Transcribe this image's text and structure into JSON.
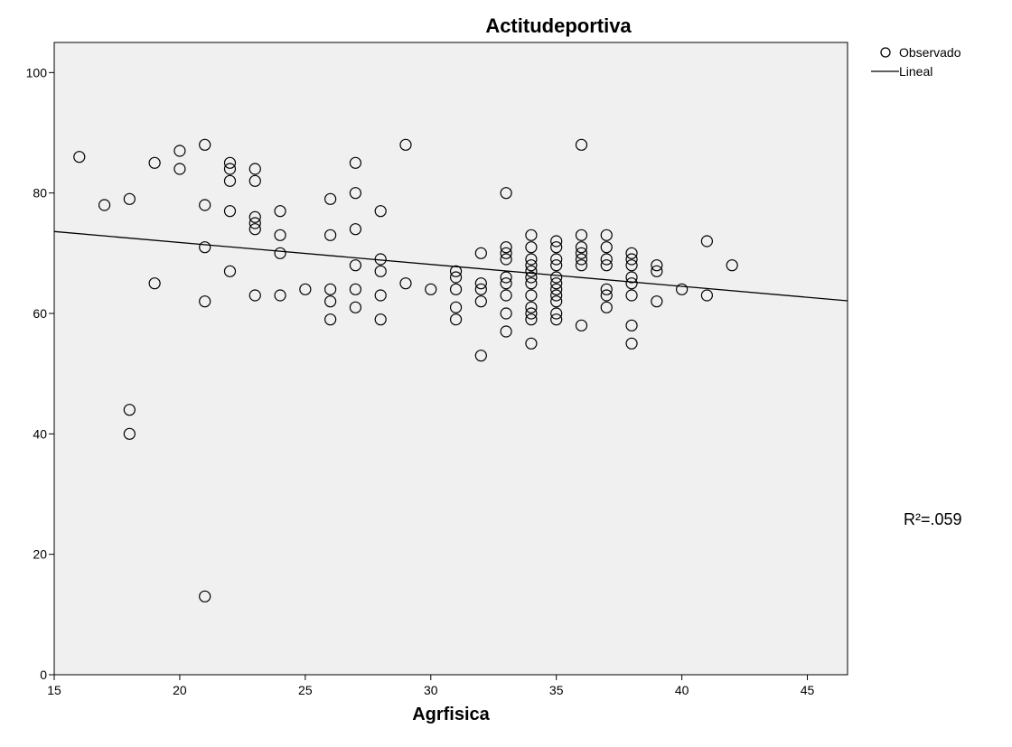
{
  "chart_data": {
    "type": "scatter",
    "title": "Actitudeportiva",
    "xlabel": "Agrfisica",
    "ylabel": "",
    "xlim": [
      15,
      46.6
    ],
    "ylim": [
      0,
      105
    ],
    "xticks": [
      15,
      20,
      25,
      30,
      35,
      40,
      45
    ],
    "yticks": [
      0,
      20,
      40,
      60,
      80,
      100
    ],
    "grid": false,
    "legend": {
      "position": "top-right",
      "entries": [
        {
          "label": "Observado",
          "marker": "circle"
        },
        {
          "label": "Lineal",
          "marker": "line"
        }
      ]
    },
    "r_squared_label": "R²=.059",
    "fit_line": {
      "x": [
        15,
        46.6
      ],
      "y": [
        73.6,
        62.1
      ]
    },
    "series": [
      {
        "name": "Observado",
        "points": [
          [
            16,
            86
          ],
          [
            17,
            78
          ],
          [
            18,
            79
          ],
          [
            18,
            44
          ],
          [
            18,
            40
          ],
          [
            19,
            85
          ],
          [
            19,
            65
          ],
          [
            20,
            87
          ],
          [
            20,
            84
          ],
          [
            21,
            88
          ],
          [
            21,
            78
          ],
          [
            21,
            71
          ],
          [
            21,
            62
          ],
          [
            21,
            13
          ],
          [
            22,
            85
          ],
          [
            22,
            84
          ],
          [
            22,
            82
          ],
          [
            22,
            77
          ],
          [
            22,
            67
          ],
          [
            23,
            84
          ],
          [
            23,
            82
          ],
          [
            23,
            76
          ],
          [
            23,
            75
          ],
          [
            23,
            74
          ],
          [
            23,
            63
          ],
          [
            24,
            77
          ],
          [
            24,
            73
          ],
          [
            24,
            70
          ],
          [
            24,
            63
          ],
          [
            25,
            64
          ],
          [
            26,
            79
          ],
          [
            26,
            73
          ],
          [
            26,
            64
          ],
          [
            26,
            62
          ],
          [
            26,
            59
          ],
          [
            27,
            85
          ],
          [
            27,
            80
          ],
          [
            27,
            74
          ],
          [
            27,
            68
          ],
          [
            27,
            64
          ],
          [
            27,
            61
          ],
          [
            28,
            77
          ],
          [
            28,
            69
          ],
          [
            28,
            67
          ],
          [
            28,
            63
          ],
          [
            28,
            59
          ],
          [
            29,
            88
          ],
          [
            29,
            65
          ],
          [
            30,
            64
          ],
          [
            31,
            67
          ],
          [
            31,
            66
          ],
          [
            31,
            64
          ],
          [
            31,
            61
          ],
          [
            31,
            59
          ],
          [
            32,
            70
          ],
          [
            32,
            65
          ],
          [
            32,
            64
          ],
          [
            32,
            62
          ],
          [
            32,
            53
          ],
          [
            33,
            80
          ],
          [
            33,
            71
          ],
          [
            33,
            70
          ],
          [
            33,
            69
          ],
          [
            33,
            66
          ],
          [
            33,
            65
          ],
          [
            33,
            63
          ],
          [
            33,
            60
          ],
          [
            33,
            57
          ],
          [
            34,
            73
          ],
          [
            34,
            71
          ],
          [
            34,
            69
          ],
          [
            34,
            68
          ],
          [
            34,
            67
          ],
          [
            34,
            66
          ],
          [
            34,
            65
          ],
          [
            34,
            63
          ],
          [
            34,
            61
          ],
          [
            34,
            60
          ],
          [
            34,
            59
          ],
          [
            34,
            55
          ],
          [
            35,
            72
          ],
          [
            35,
            71
          ],
          [
            35,
            69
          ],
          [
            35,
            68
          ],
          [
            35,
            66
          ],
          [
            35,
            65
          ],
          [
            35,
            64
          ],
          [
            35,
            63
          ],
          [
            35,
            62
          ],
          [
            35,
            60
          ],
          [
            35,
            59
          ],
          [
            36,
            88
          ],
          [
            36,
            73
          ],
          [
            36,
            71
          ],
          [
            36,
            70
          ],
          [
            36,
            69
          ],
          [
            36,
            68
          ],
          [
            36,
            58
          ],
          [
            37,
            73
          ],
          [
            37,
            71
          ],
          [
            37,
            69
          ],
          [
            37,
            68
          ],
          [
            37,
            64
          ],
          [
            37,
            63
          ],
          [
            37,
            61
          ],
          [
            38,
            70
          ],
          [
            38,
            69
          ],
          [
            38,
            68
          ],
          [
            38,
            66
          ],
          [
            38,
            65
          ],
          [
            38,
            63
          ],
          [
            38,
            58
          ],
          [
            38,
            55
          ],
          [
            39,
            68
          ],
          [
            39,
            67
          ],
          [
            39,
            62
          ],
          [
            40,
            64
          ],
          [
            41,
            72
          ],
          [
            41,
            63
          ],
          [
            42,
            68
          ]
        ]
      }
    ]
  }
}
